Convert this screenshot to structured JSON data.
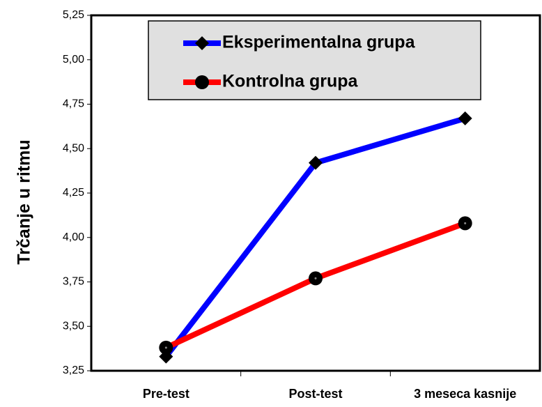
{
  "chart_data": {
    "type": "line",
    "y_label": "Trčanje u ritmu",
    "categories": [
      "Pre-test",
      "Post-test",
      "3 meseca kasnije"
    ],
    "series": [
      {
        "name": "Eksperimentalna grupa",
        "color": "#0000ff",
        "marker": "diamond",
        "values": [
          3.33,
          4.42,
          4.67
        ]
      },
      {
        "name": "Kontrolna grupa",
        "color": "#ff0000",
        "marker": "circle",
        "values": [
          3.38,
          3.77,
          4.08
        ]
      }
    ],
    "ylim": [
      3.25,
      5.25
    ],
    "yticks": [
      {
        "value": 3.25,
        "label": "3,25"
      },
      {
        "value": 3.5,
        "label": "3,50"
      },
      {
        "value": 3.75,
        "label": "3,75"
      },
      {
        "value": 4.0,
        "label": "4,00"
      },
      {
        "value": 4.25,
        "label": "4,25"
      },
      {
        "value": 4.5,
        "label": "4,50"
      },
      {
        "value": 4.75,
        "label": "4,75"
      },
      {
        "value": 5.0,
        "label": "5,00"
      },
      {
        "value": 5.25,
        "label": "5,25"
      }
    ],
    "legend": "top"
  }
}
